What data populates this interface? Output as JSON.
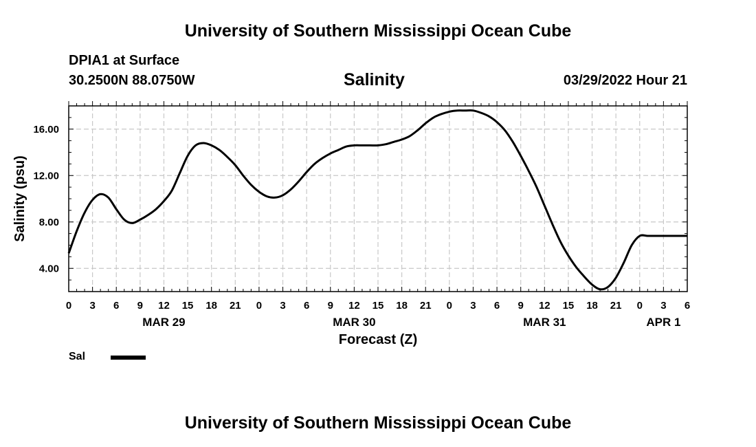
{
  "header": {
    "title": "University of Southern Mississippi Ocean Cube",
    "station": "DPIA1 at Surface",
    "coords": "30.2500N  88.0750W",
    "datetime": "03/29/2022 Hour 21"
  },
  "footer": {
    "title": "University of Southern Mississippi Ocean Cube"
  },
  "legend": {
    "label": "Sal",
    "color": "#000000"
  },
  "chart_data": {
    "type": "line",
    "title": "Salinity",
    "xlabel": "Forecast (Z)",
    "ylabel": "Salinity (psu)",
    "x_units": "forecast hours from 00Z MAR 29",
    "xlim": [
      0,
      78
    ],
    "ylim": [
      2,
      18
    ],
    "grid": true,
    "x_ticks": [
      0,
      3,
      6,
      9,
      12,
      15,
      18,
      21,
      24,
      27,
      30,
      33,
      36,
      39,
      42,
      45,
      48,
      51,
      54,
      57,
      60,
      63,
      66,
      69,
      72,
      75,
      78
    ],
    "x_tick_labels": [
      "0",
      "3",
      "6",
      "9",
      "12",
      "15",
      "18",
      "21",
      "0",
      "3",
      "6",
      "9",
      "12",
      "15",
      "18",
      "21",
      "0",
      "3",
      "6",
      "9",
      "12",
      "15",
      "18",
      "21",
      "0",
      "3",
      "6"
    ],
    "date_labels": [
      {
        "x": 12,
        "label": "MAR 29"
      },
      {
        "x": 36,
        "label": "MAR 30"
      },
      {
        "x": 60,
        "label": "MAR 31"
      },
      {
        "x": 75,
        "label": "APR 1"
      }
    ],
    "y_ticks": [
      4,
      8,
      12,
      16
    ],
    "y_tick_labels": [
      "4.00",
      "8.00",
      "12.00",
      "16.00"
    ],
    "series": [
      {
        "name": "Sal",
        "x": [
          0,
          1,
          2,
          3,
          4,
          5,
          6,
          7,
          8,
          9,
          10,
          11,
          12,
          13,
          14,
          15,
          16,
          17,
          18,
          19,
          20,
          21,
          22,
          23,
          24,
          25,
          26,
          27,
          28,
          29,
          30,
          31,
          32,
          33,
          34,
          35,
          36,
          37,
          38,
          39,
          40,
          41,
          42,
          43,
          44,
          45,
          46,
          47,
          48,
          49,
          50,
          51,
          52,
          53,
          54,
          55,
          56,
          57,
          58,
          59,
          60,
          61,
          62,
          63,
          64,
          65,
          66,
          67,
          68,
          69,
          70,
          71,
          72,
          73,
          74,
          75,
          76,
          77,
          78
        ],
        "values": [
          5.3,
          7.2,
          8.8,
          9.9,
          10.4,
          10.1,
          9.1,
          8.2,
          7.9,
          8.2,
          8.6,
          9.1,
          9.8,
          10.7,
          12.2,
          13.7,
          14.6,
          14.8,
          14.6,
          14.2,
          13.6,
          12.9,
          12.0,
          11.2,
          10.6,
          10.2,
          10.1,
          10.3,
          10.8,
          11.5,
          12.3,
          13.0,
          13.5,
          13.9,
          14.2,
          14.5,
          14.6,
          14.6,
          14.6,
          14.6,
          14.7,
          14.9,
          15.1,
          15.4,
          15.9,
          16.5,
          17.0,
          17.3,
          17.5,
          17.6,
          17.6,
          17.6,
          17.4,
          17.1,
          16.6,
          15.9,
          14.9,
          13.7,
          12.4,
          11.0,
          9.4,
          7.8,
          6.3,
          5.1,
          4.1,
          3.3,
          2.6,
          2.2,
          2.4,
          3.2,
          4.5,
          6.0,
          6.8,
          6.8,
          6.8,
          6.8,
          6.8,
          6.8,
          6.8
        ]
      }
    ]
  }
}
